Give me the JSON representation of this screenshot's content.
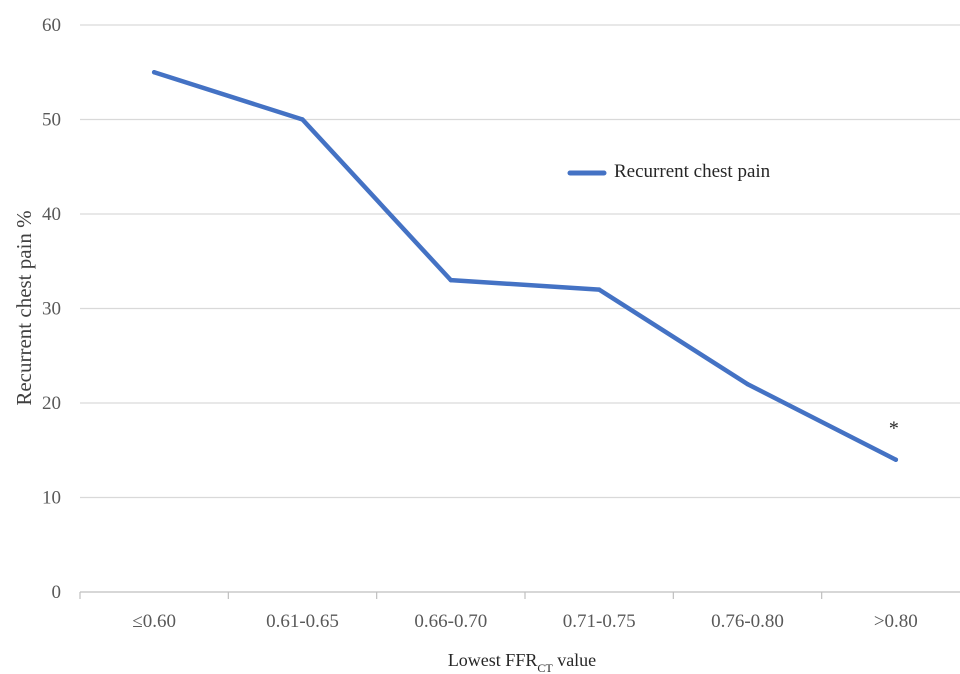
{
  "chart_data": {
    "type": "line",
    "title": "",
    "xlabel": "Lowest FFR",
    "xlabel_sub": "CT",
    "xlabel_suffix": " value",
    "ylabel": "Recurrent chest pain %",
    "categories": [
      "≤0.60",
      "0.61-0.65",
      "0.66-0.70",
      "0.71-0.75",
      "0.76-0.80",
      ">0.80"
    ],
    "series": [
      {
        "name": "Recurrent chest pain",
        "values": [
          55,
          50,
          33,
          32,
          22,
          14
        ],
        "color": "#4472C4"
      }
    ],
    "ylim": [
      0,
      60
    ],
    "yticks": [
      0,
      10,
      20,
      30,
      40,
      50,
      60
    ],
    "grid": true,
    "legend": "upper-right",
    "annotations": [
      {
        "text": "*",
        "category": ">0.80",
        "value": 14
      }
    ],
    "colors": {
      "grid": "#D9D9D9",
      "axis": "#BFBFBF"
    }
  }
}
